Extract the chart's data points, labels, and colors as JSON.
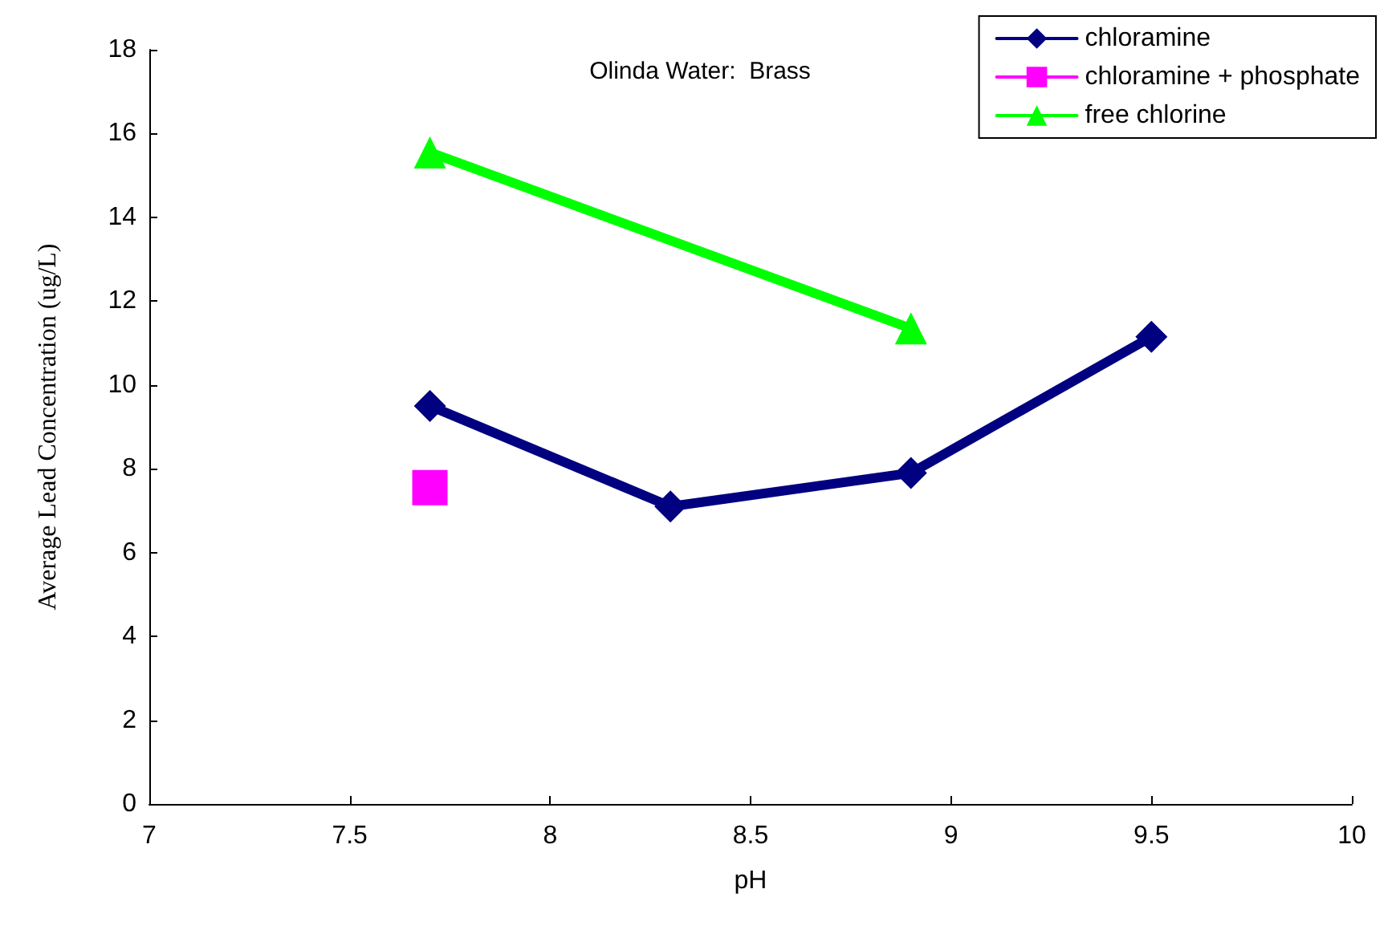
{
  "chart_data": {
    "type": "line",
    "title": "Olinda Water:  Brass",
    "xlabel": "pH",
    "ylabel": "Average Lead Concentration (ug/L)",
    "xlim": [
      7,
      10
    ],
    "xticks": [
      7,
      7.5,
      8,
      8.5,
      9,
      9.5,
      10
    ],
    "ylim": [
      0,
      18
    ],
    "yticks": [
      0,
      2,
      4,
      6,
      8,
      10,
      12,
      14,
      16,
      18
    ],
    "grid": false,
    "legend": "top right",
    "line_style": "solid",
    "series": [
      {
        "name": "chloramine",
        "color": "#000080",
        "marker": "diamond",
        "x": [
          7.7,
          8.3,
          8.9,
          9.5
        ],
        "values": [
          9.5,
          7.1,
          7.9,
          11.15
        ]
      },
      {
        "name": "chloramine + phosphate",
        "color": "#ff00ff",
        "marker": "square",
        "x": [
          7.7
        ],
        "values": [
          7.55
        ]
      },
      {
        "name": "free chlorine",
        "color": "#00ff00",
        "marker": "triangle",
        "x": [
          7.7,
          8.9
        ],
        "values": [
          15.55,
          11.35
        ]
      }
    ]
  }
}
